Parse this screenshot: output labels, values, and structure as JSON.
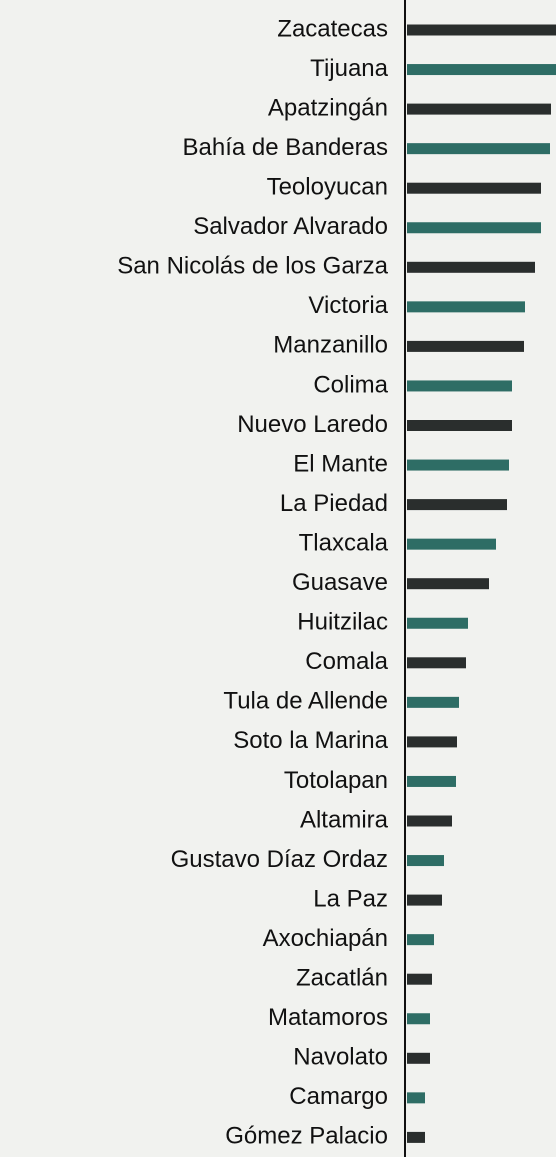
{
  "chart_data": {
    "type": "bar",
    "orientation": "horizontal",
    "categories": [
      "Zacatecas",
      "Tijuana",
      "Apatzingán",
      "Bahía de Banderas",
      "Teoloyucan",
      "Salvador Alvarado",
      "San Nicolás de los Garza",
      "Victoria",
      "Manzanillo",
      "Colima",
      "Nuevo Laredo",
      "El Mante",
      "La Piedad",
      "Tlaxcala",
      "Guasave",
      "Huitzilac",
      "Comala",
      "Tula de Allende",
      "Soto la Marina",
      "Totolapan",
      "Altamira",
      "Gustavo Díaz Ordaz",
      "La Paz",
      "Axochiapán",
      "Zacatlán",
      "Matamoros",
      "Navolato",
      "Camargo",
      "Gómez Palacio"
    ],
    "values": [
      155,
      152,
      144,
      143,
      134,
      134,
      128,
      118,
      117,
      105,
      105,
      102,
      100,
      89,
      82,
      61,
      59,
      52,
      50,
      49,
      45,
      37,
      35,
      27,
      25,
      23,
      23,
      18,
      18
    ],
    "colors": [
      "#2a2e2d",
      "#2e6d65"
    ],
    "xlim": [
      0,
      150
    ]
  }
}
